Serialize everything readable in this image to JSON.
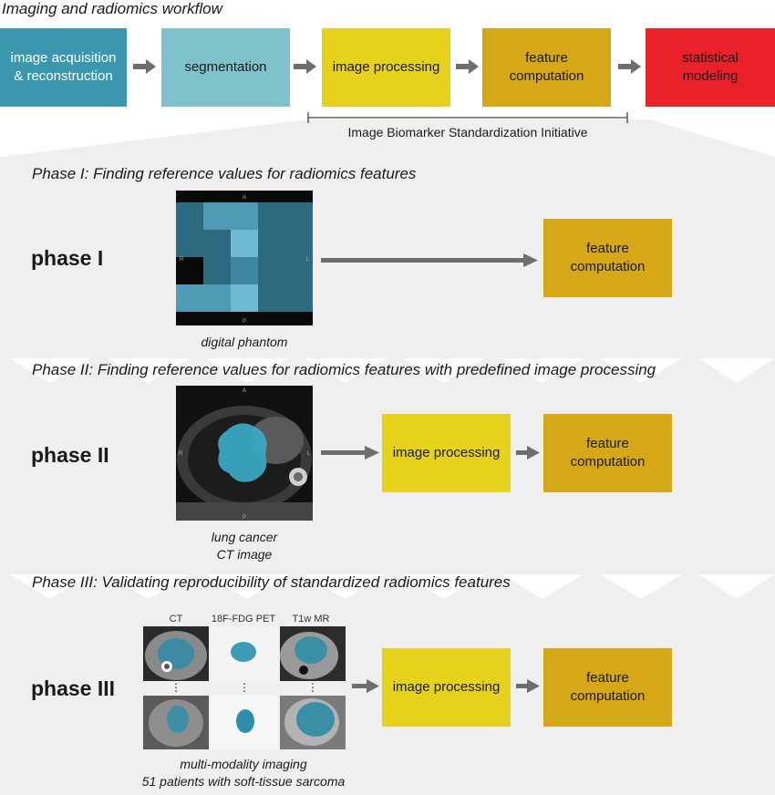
{
  "workflow": {
    "title": "Imaging and radiomics workflow",
    "steps": [
      {
        "label": "image acquisition\n& reconstruction"
      },
      {
        "label": "segmentation"
      },
      {
        "label": "image processing"
      },
      {
        "label": "feature\ncomputation"
      },
      {
        "label": "statistical\nmodeling"
      }
    ],
    "initiative_label": "Image Biomarker Standardization Initiative"
  },
  "colors": {
    "teal_dark": "#3a97ae",
    "teal_light": "#7ec3cc",
    "yellow": "#e6d21a",
    "gold": "#d6a716",
    "red": "#e8212a",
    "panel_gray": "#efefef"
  },
  "phase1": {
    "heading": "Phase I: Finding reference values for radiomics features",
    "label": "phase I",
    "image_caption": "digital phantom",
    "orientation": {
      "top": "A",
      "bottom": "P",
      "left": "R",
      "right": "L"
    },
    "output_box": "feature\ncomputation"
  },
  "phase2": {
    "heading": "Phase II: Finding reference values for radiomics features with predefined image processing",
    "label": "phase II",
    "image_caption": "lung cancer\nCT image",
    "orientation": {
      "top": "A",
      "bottom": "P",
      "left": "R",
      "right": "L"
    },
    "process_box": "image processing",
    "output_box": "feature\ncomputation"
  },
  "phase3": {
    "heading": "Phase III: Validating reproducibility of standardized radiomics features",
    "label": "phase III",
    "modalities": [
      "CT",
      "18F-FDG PET",
      "T1w MR"
    ],
    "ellipsis": "⋮",
    "image_caption": "multi-modality imaging\n51 patients with soft-tissue sarcoma",
    "process_box": "image processing",
    "output_box": "feature\ncomputation"
  }
}
